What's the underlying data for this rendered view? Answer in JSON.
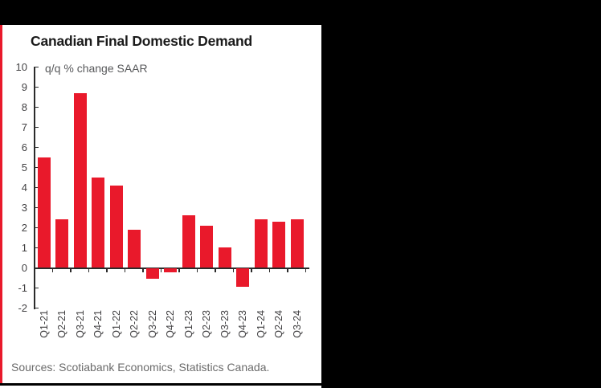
{
  "page": {
    "background_color": "#000000",
    "card_color": "#FFFFFF",
    "accent_color": "#E9192B"
  },
  "chart_data": {
    "type": "bar",
    "title": "Canadian Final Domestic Demand",
    "subtitle": "q/q % change SAAR",
    "source_note": "Sources: Scotiabank Economics, Statistics Canada.",
    "categories": [
      "Q1-21",
      "Q2-21",
      "Q3-21",
      "Q4-21",
      "Q1-22",
      "Q2-22",
      "Q3-22",
      "Q4-22",
      "Q1-23",
      "Q2-23",
      "Q3-23",
      "Q4-23",
      "Q1-24",
      "Q2-24",
      "Q3-24"
    ],
    "values": [
      5.5,
      2.4,
      8.7,
      4.5,
      4.1,
      1.9,
      -0.5,
      -0.2,
      2.6,
      2.1,
      1.0,
      -0.9,
      2.4,
      2.3,
      2.4
    ],
    "xlabel": "",
    "ylabel": "",
    "ylim": [
      -2,
      10
    ],
    "ytick_step": 1,
    "yticks": [
      10,
      9,
      8,
      7,
      6,
      5,
      4,
      3,
      2,
      1,
      0,
      -1,
      -2
    ],
    "grid": false,
    "legend": "none",
    "bar_color": "#E9192B",
    "axis_color": "#2B2B2B",
    "tick_label_color": "#414042",
    "subtitle_color": "#58595B",
    "source_color": "#6B6B6B"
  }
}
